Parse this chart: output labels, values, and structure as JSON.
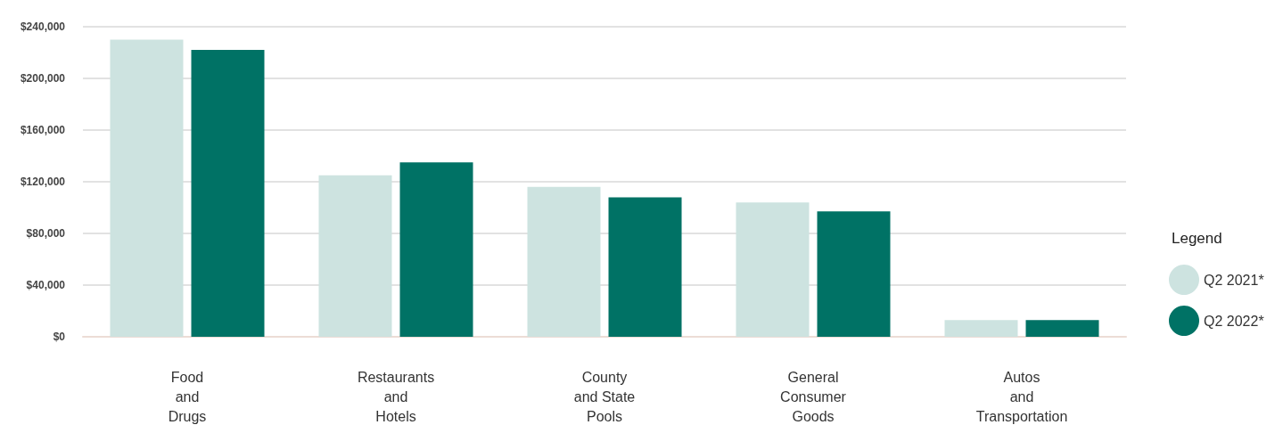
{
  "chart_data": {
    "type": "bar",
    "categories": [
      "Food\nand\nDrugs",
      "Restaurants\nand\nHotels",
      "County\nand State\nPools",
      "General\nConsumer\nGoods",
      "Autos\nand\nTransportation"
    ],
    "series": [
      {
        "name": "Q2 2021*",
        "color": "#cde3e0",
        "values": [
          230000,
          125000,
          116000,
          104000,
          13000
        ]
      },
      {
        "name": "Q2 2022*",
        "color": "#007265",
        "values": [
          222000,
          135000,
          108000,
          97000,
          13000
        ]
      }
    ],
    "ylim": [
      0,
      240000
    ],
    "yticks": [
      {
        "value": 0,
        "label": "$0"
      },
      {
        "value": 40000,
        "label": "$40,000"
      },
      {
        "value": 80000,
        "label": "$80,000"
      },
      {
        "value": 120000,
        "label": "$120,000"
      },
      {
        "value": 160000,
        "label": "$160,000"
      },
      {
        "value": 200000,
        "label": "$200,000"
      },
      {
        "value": 240000,
        "label": "$240,000"
      }
    ],
    "grid": "y",
    "legend": "right",
    "legend_title": "Legend"
  }
}
